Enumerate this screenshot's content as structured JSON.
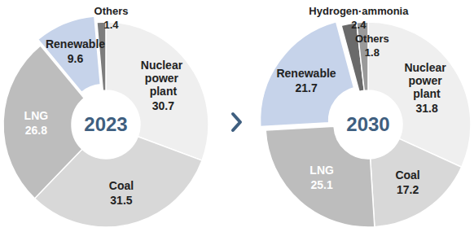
{
  "chart_data": [
    {
      "type": "pie",
      "title": "2023",
      "categories": [
        "Nuclear power plant",
        "Coal",
        "LNG",
        "Renewable",
        "Others"
      ],
      "values": [
        30.7,
        31.5,
        26.8,
        9.6,
        1.4
      ],
      "colors": [
        "#efefef",
        "#d8d8d8",
        "#bdbdbd",
        "#c6d3ea",
        "#7d7d7d"
      ],
      "data_labels": true
    },
    {
      "type": "pie",
      "title": "2030",
      "categories": [
        "Nuclear power plant",
        "Coal",
        "LNG",
        "Renewable",
        "Hydrogen·ammonia",
        "Others"
      ],
      "values": [
        31.8,
        17.2,
        25.1,
        21.7,
        2.4,
        1.8
      ],
      "colors": [
        "#efefef",
        "#d8d8d8",
        "#bdbdbd",
        "#c6d3ea",
        "#6a6a6a",
        "#9a9a9a"
      ],
      "data_labels": true
    }
  ]
}
